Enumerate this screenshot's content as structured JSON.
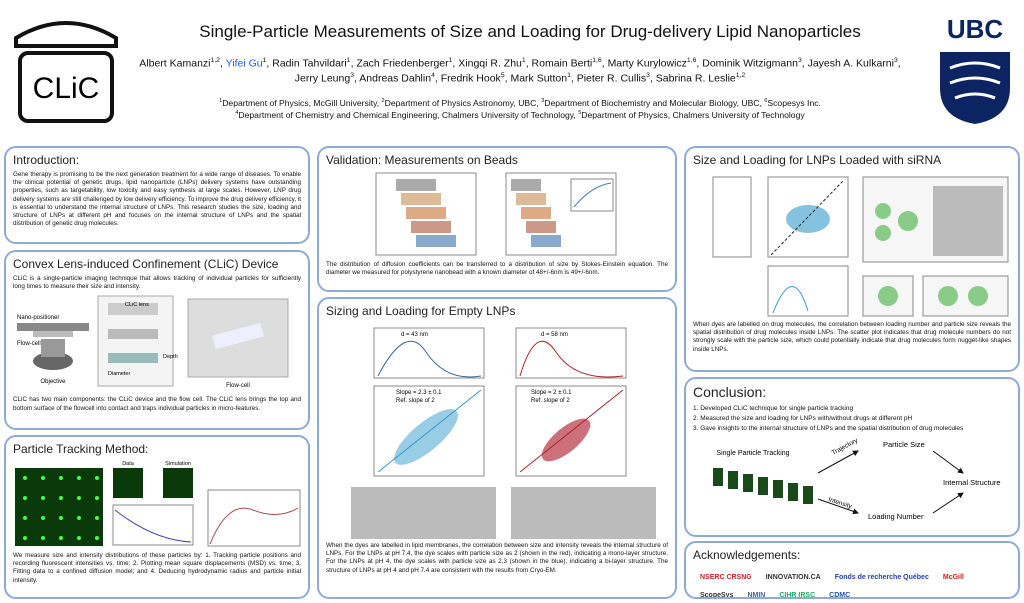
{
  "header": {
    "title": "Single-Particle Measurements of Size and Loading for Drug-delivery Lipid Nanoparticles",
    "logo_left": "CLiC",
    "logo_right": "UBC",
    "authors": [
      {
        "name": "Albert Kamanzi",
        "sup": "1,2"
      },
      {
        "name": "Yifei Gu",
        "sup": "1"
      },
      {
        "name": "Radin Tahvildari",
        "sup": "1"
      },
      {
        "name": "Zach Friedenberger",
        "sup": "1"
      },
      {
        "name": "Xingqi R. Zhu",
        "sup": "1"
      },
      {
        "name": "Romain Berti",
        "sup": "1,6"
      },
      {
        "name": "Marty Kurylowicz",
        "sup": "1,6"
      },
      {
        "name": "Dominik Witzigmann",
        "sup": "3"
      },
      {
        "name": "Jayesh A. Kulkarni",
        "sup": "3"
      },
      {
        "name": "Jerry Leung",
        "sup": "3"
      },
      {
        "name": "Andreas Dahlin",
        "sup": "4"
      },
      {
        "name": "Fredrik Hook",
        "sup": "5"
      },
      {
        "name": "Mark Sutton",
        "sup": "1"
      },
      {
        "name": "Pieter R. Cullis",
        "sup": "3"
      },
      {
        "name": "Sabrina R. Leslie",
        "sup": "1,2"
      }
    ],
    "affiliations": [
      [
        {
          "sup": "1",
          "text": "Department of Physics, McGill University,"
        },
        {
          "sup": "2",
          "text": "Department of Physics Astronomy, UBC,"
        },
        {
          "sup": "3",
          "text": "Department of Biochemistry and Molecular Biology, UBC,"
        },
        {
          "sup": "6",
          "text": "Scopesys Inc."
        }
      ],
      [
        {
          "sup": "4",
          "text": "Department of Chemistry and Chemical Engineering, Chalmers University of Technology,"
        },
        {
          "sup": "5",
          "text": "Department of Physics, Chalmers University of Technology"
        }
      ]
    ]
  },
  "intro": {
    "title": "Introduction:",
    "body": "Gene therapy is promising to be the next generation treatment for a wide range of diseases. To enable the clinical potential of genetic drugs, lipid nanoparticle (LNPs) delivery systems have outstanding properties, such as targetability, low toxicity and easy synthesis at large scales. However, LNP drug delivery systems are still challenged by low delivery efficiency. To improve the drug delivery efficiency, it is essential to understand the internal structure of LNPs. This research studies the size, loading and structure of LNPs at different pH and focuses on the internal structure of LNPs and the spatial distribution of genetic drug molecules."
  },
  "clic": {
    "title": "Convex Lens-induced Confinement (CLiC) Device",
    "body": "CLiC is a single-particle imaging technique that allows tracking of individual particles for sufficiently long times to measure their size and intensity.",
    "labels": {
      "lens": "CLiC lens",
      "positioner": "Nano-positioner",
      "flowcell": "Flow-cell",
      "objective": "Objective",
      "diameter": "Diameter",
      "depth": "Depth",
      "photo": "Flow-cell"
    },
    "caption": "CLiC has two main components: the CLiC device and the flow cell. The CLiC lens brings the top and bottom surface of the flowcell into contact and traps individual particles in micro-features."
  },
  "tracking": {
    "title": "Particle Tracking Method:",
    "labels": {
      "data": "Data",
      "simulation": "Simulation"
    },
    "body": "We measure size and intensity distributions of these particles by: 1. Tracking particle positions and recording fluorescent intensities vs. time; 2. Plotting mean square displacements (MSD) vs. time; 3. Fitting data to a confined diffusion model; and 4. Deducing hydrodynamic radius and particle initial intensity."
  },
  "validation": {
    "title": "Validation: Measurements on Beads",
    "body": "The distribution of diffusion coefficients can be transferred to a distribution of size by Stokes-Einstein equation. The diameter we measured for polystyrene nanobead with a known diameter of 48+/-6nm is 49+/-6nm."
  },
  "sizing": {
    "title": "Sizing and Loading for Empty LNPs",
    "labels": {
      "d1": "d = 43 nm",
      "d2": "d = 58 nm",
      "slope1": "Slope = 2.3 ± 0.1",
      "slope2": "Slope = 2 ± 0.1",
      "ref": "Ref. slope of 2"
    },
    "body": "When the dyes are labelled in lipid membranes, the correlation between size and intensity reveals the internal structure of LNPs. For the LNPs at pH 7.4, the dye scales with particle size as 2 (shown in the red), indicating a mono-layer structure. For the LNPs at pH 4, the dye scales with particle size as 2.3 (shown in the blue), indicating a bi-layer structure. The structure of LNPs at pH 4 and pH 7.4 are consistent with the results from Cryo-EM."
  },
  "sirna": {
    "title": "Size and Loading for LNPs Loaded with siRNA",
    "body": "When dyes are labelled on drug molecules, the correlation between loading number and particle size reveals the spatial distribution of drug molecules inside LNPs. The scatter plot indicates that drug molecule numbers do not strongly scale with the particle size, which could potentially indicate that drug molecules form nugget-like shapes inside LNPs."
  },
  "conclusion": {
    "title": "Conclusion:",
    "items": [
      "1. Developed CLiC technique for single particle tracking",
      "2. Measured the size and loading for LNPs with/without drugs at different pH",
      "3. Gave insights to the internal structure of LNPs and the spatial distribution of drug molecules"
    ],
    "diagram": {
      "tracking": "Single Particle Tracking",
      "trajectory": "Trajectory",
      "size": "Particle Size",
      "intensity": "Intensity",
      "loading": "Loading Number",
      "structure": "Internal Structure"
    }
  },
  "acknowledgements": {
    "title": "Acknowledgements:",
    "sponsors": [
      "NSERC CRSNG",
      "INNOVATION.CA",
      "Fonds de recherche Québec",
      "McGill",
      "ScopeSys",
      "NMIN",
      "CIHR IRSC",
      "CDMC"
    ]
  }
}
